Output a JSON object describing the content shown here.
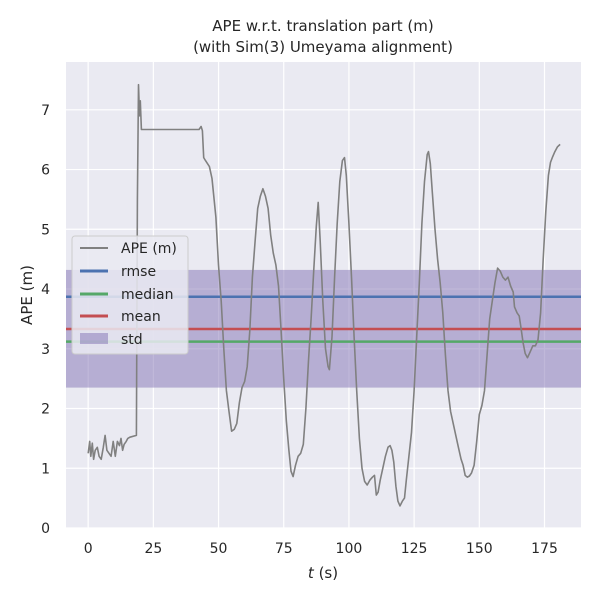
{
  "chart_data": {
    "type": "line",
    "title": "APE w.r.t. translation part (m)",
    "subtitle": "(with Sim(3) Umeyama alignment)",
    "xlabel_italic": "t",
    "xlabel_rest": " (s)",
    "ylabel": "APE (m)",
    "xlim": [
      -8.5,
      189
    ],
    "ylim": [
      0,
      7.8
    ],
    "xticks": [
      0,
      25,
      50,
      75,
      100,
      125,
      150,
      175
    ],
    "yticks": [
      0,
      1,
      2,
      3,
      4,
      5,
      6,
      7
    ],
    "grid": true,
    "legend_position": "center-left",
    "legend": [
      "APE (m)",
      "rmse",
      "median",
      "mean",
      "std"
    ],
    "colors": {
      "ape": "#808080",
      "rmse": "#4c72b0",
      "median": "#55a868",
      "mean": "#c44e52",
      "std": "#8172b3",
      "plot_background": "#eaeaf2",
      "grid": "#ffffff"
    },
    "stats": {
      "rmse": 3.87,
      "median": 3.12,
      "mean": 3.33,
      "std_low": 2.35,
      "std_high": 4.32
    },
    "series": [
      {
        "name": "APE (m)",
        "points": [
          [
            0,
            1.25
          ],
          [
            0.6,
            1.45
          ],
          [
            1.0,
            1.2
          ],
          [
            1.6,
            1.42
          ],
          [
            2.1,
            1.15
          ],
          [
            2.7,
            1.3
          ],
          [
            3.5,
            1.35
          ],
          [
            4.2,
            1.2
          ],
          [
            5.0,
            1.15
          ],
          [
            5.8,
            1.35
          ],
          [
            6.5,
            1.55
          ],
          [
            7.2,
            1.3
          ],
          [
            8.0,
            1.25
          ],
          [
            8.8,
            1.2
          ],
          [
            9.6,
            1.45
          ],
          [
            10.4,
            1.2
          ],
          [
            11.2,
            1.45
          ],
          [
            12.0,
            1.38
          ],
          [
            12.6,
            1.5
          ],
          [
            13.2,
            1.3
          ],
          [
            13.8,
            1.4
          ],
          [
            14.6,
            1.45
          ],
          [
            15.2,
            1.5
          ],
          [
            16.0,
            1.52
          ],
          [
            18.5,
            1.55
          ],
          [
            18.9,
            5.5
          ],
          [
            19.3,
            7.42
          ],
          [
            19.7,
            6.9
          ],
          [
            20.0,
            7.15
          ],
          [
            20.4,
            6.67
          ],
          [
            22,
            6.67
          ],
          [
            30,
            6.67
          ],
          [
            40,
            6.67
          ],
          [
            42.5,
            6.67
          ],
          [
            43.3,
            6.72
          ],
          [
            43.8,
            6.65
          ],
          [
            44.3,
            6.2
          ],
          [
            45,
            6.15
          ],
          [
            46.5,
            6.05
          ],
          [
            47.5,
            5.85
          ],
          [
            49,
            5.2
          ],
          [
            50,
            4.4
          ],
          [
            51,
            3.8
          ],
          [
            52,
            3.0
          ],
          [
            53,
            2.3
          ],
          [
            54,
            1.95
          ],
          [
            55,
            1.62
          ],
          [
            56,
            1.65
          ],
          [
            57,
            1.75
          ],
          [
            58,
            2.1
          ],
          [
            59,
            2.35
          ],
          [
            60,
            2.45
          ],
          [
            61,
            2.7
          ],
          [
            62,
            3.3
          ],
          [
            63,
            4.2
          ],
          [
            64,
            4.8
          ],
          [
            65,
            5.35
          ],
          [
            66,
            5.55
          ],
          [
            67,
            5.68
          ],
          [
            68,
            5.55
          ],
          [
            69,
            5.35
          ],
          [
            70,
            4.9
          ],
          [
            71,
            4.6
          ],
          [
            72,
            4.4
          ],
          [
            73,
            4.05
          ],
          [
            74,
            3.3
          ],
          [
            75,
            2.5
          ],
          [
            76,
            1.8
          ],
          [
            77,
            1.3
          ],
          [
            77.8,
            0.95
          ],
          [
            78.6,
            0.86
          ],
          [
            79.5,
            1.05
          ],
          [
            80.5,
            1.2
          ],
          [
            81.5,
            1.25
          ],
          [
            82.5,
            1.4
          ],
          [
            83.5,
            2.0
          ],
          [
            84.5,
            2.8
          ],
          [
            85.5,
            3.5
          ],
          [
            86.5,
            4.3
          ],
          [
            87.5,
            5.05
          ],
          [
            88.2,
            5.45
          ],
          [
            89,
            4.8
          ],
          [
            90,
            3.8
          ],
          [
            91,
            3.0
          ],
          [
            92,
            2.7
          ],
          [
            92.5,
            2.65
          ],
          [
            93.5,
            3.2
          ],
          [
            94.5,
            4.2
          ],
          [
            95.5,
            5.1
          ],
          [
            96.5,
            5.8
          ],
          [
            97.5,
            6.15
          ],
          [
            98.3,
            6.2
          ],
          [
            99,
            5.9
          ],
          [
            100,
            5.1
          ],
          [
            101,
            4.2
          ],
          [
            102,
            3.2
          ],
          [
            103,
            2.3
          ],
          [
            104,
            1.5
          ],
          [
            105,
            1.0
          ],
          [
            106,
            0.78
          ],
          [
            107,
            0.72
          ],
          [
            108,
            0.8
          ],
          [
            109,
            0.85
          ],
          [
            109.8,
            0.88
          ],
          [
            110.5,
            0.55
          ],
          [
            111.2,
            0.6
          ],
          [
            112,
            0.8
          ],
          [
            113,
            1.0
          ],
          [
            114,
            1.2
          ],
          [
            115,
            1.35
          ],
          [
            115.8,
            1.38
          ],
          [
            116.5,
            1.3
          ],
          [
            117.2,
            1.1
          ],
          [
            118,
            0.7
          ],
          [
            118.8,
            0.45
          ],
          [
            119.6,
            0.37
          ],
          [
            120.5,
            0.45
          ],
          [
            121.3,
            0.5
          ],
          [
            122,
            0.8
          ],
          [
            123,
            1.2
          ],
          [
            124,
            1.6
          ],
          [
            125,
            2.3
          ],
          [
            126,
            3.2
          ],
          [
            127,
            4.1
          ],
          [
            128,
            5.1
          ],
          [
            129,
            5.8
          ],
          [
            130,
            6.25
          ],
          [
            130.5,
            6.3
          ],
          [
            131.2,
            6.1
          ],
          [
            132,
            5.6
          ],
          [
            133,
            5.0
          ],
          [
            134,
            4.5
          ],
          [
            135,
            4.1
          ],
          [
            136,
            3.6
          ],
          [
            137,
            2.9
          ],
          [
            138,
            2.3
          ],
          [
            139,
            1.95
          ],
          [
            140,
            1.75
          ],
          [
            141,
            1.55
          ],
          [
            142,
            1.35
          ],
          [
            143,
            1.15
          ],
          [
            143.8,
            1.05
          ],
          [
            144.6,
            0.88
          ],
          [
            145.4,
            0.85
          ],
          [
            146.2,
            0.87
          ],
          [
            147,
            0.92
          ],
          [
            148,
            1.05
          ],
          [
            149,
            1.45
          ],
          [
            150,
            1.9
          ],
          [
            151,
            2.05
          ],
          [
            152,
            2.3
          ],
          [
            153,
            2.9
          ],
          [
            154,
            3.5
          ],
          [
            155,
            3.8
          ],
          [
            156,
            4.1
          ],
          [
            157,
            4.35
          ],
          [
            158,
            4.3
          ],
          [
            159,
            4.2
          ],
          [
            160,
            4.15
          ],
          [
            161,
            4.2
          ],
          [
            162,
            4.05
          ],
          [
            163,
            3.95
          ],
          [
            163.5,
            3.7
          ],
          [
            164.5,
            3.6
          ],
          [
            165.3,
            3.55
          ],
          [
            166,
            3.35
          ],
          [
            166.8,
            3.1
          ],
          [
            167.6,
            2.92
          ],
          [
            168.5,
            2.85
          ],
          [
            169.5,
            2.95
          ],
          [
            170.5,
            3.05
          ],
          [
            171.5,
            3.05
          ],
          [
            172.5,
            3.15
          ],
          [
            173.5,
            3.6
          ],
          [
            174.5,
            4.5
          ],
          [
            175.5,
            5.3
          ],
          [
            176.5,
            5.9
          ],
          [
            177.3,
            6.12
          ],
          [
            178,
            6.2
          ],
          [
            179,
            6.3
          ],
          [
            180,
            6.38
          ],
          [
            181,
            6.42
          ]
        ]
      }
    ]
  }
}
